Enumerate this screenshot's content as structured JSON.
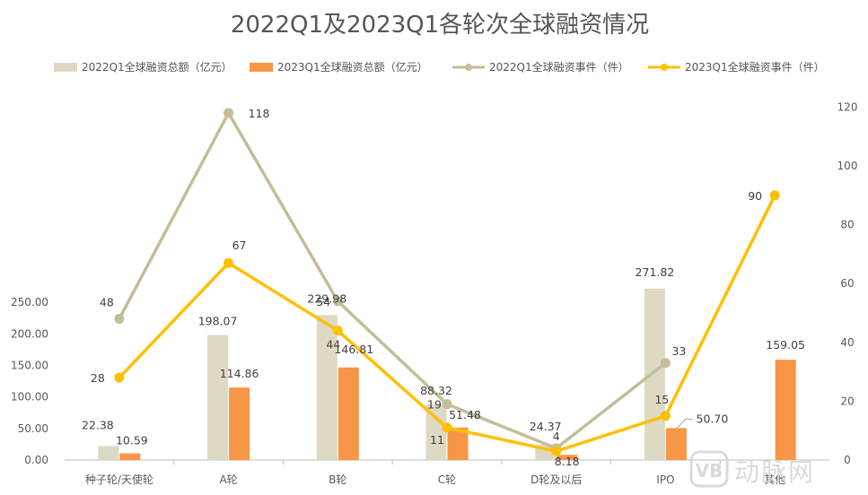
{
  "chart_data": {
    "type": "bar",
    "title": "2022Q1及2023Q1各轮次全球融资情况",
    "categories": [
      "种子轮/天使轮",
      "A轮",
      "B轮",
      "C轮",
      "D轮及以后",
      "IPO",
      "其他"
    ],
    "series": [
      {
        "name": "2022Q1全球融资总额（亿元）",
        "type": "bar",
        "axis": "left",
        "color": "#DDD9C3",
        "values": [
          22.38,
          198.07,
          229.98,
          88.32,
          24.37,
          271.82,
          null
        ],
        "labels": [
          "22.38",
          "198.07",
          "229.98",
          "88.32",
          "24.37",
          "271.82",
          ""
        ]
      },
      {
        "name": "2023Q1全球融资总额（亿元）",
        "type": "bar",
        "axis": "left",
        "color": "#F79646",
        "values": [
          10.59,
          114.86,
          146.81,
          51.48,
          8.18,
          50.7,
          159.05
        ],
        "labels": [
          "10.59",
          "114.86",
          "146.81",
          "51.48",
          "8.18",
          "50.70",
          "159.05"
        ]
      },
      {
        "name": "2022Q1全球融资事件（件）",
        "type": "line",
        "axis": "right",
        "color": "#C4BD97",
        "values": [
          48,
          118,
          54,
          19,
          4,
          33,
          null
        ],
        "labels": [
          "48",
          "118",
          "54",
          "19",
          "4",
          "33",
          ""
        ]
      },
      {
        "name": "2023Q1全球融资事件（件）",
        "type": "line",
        "axis": "right",
        "color": "#FFC000",
        "values": [
          28,
          67,
          44,
          11,
          3,
          15,
          90
        ],
        "labels": [
          "28",
          "67",
          "44",
          "11",
          "",
          "15",
          "90"
        ]
      }
    ],
    "y_left": {
      "min": 0,
      "max": 280,
      "ticks": [
        "0.00",
        "50.00",
        "100.00",
        "150.00",
        "200.00",
        "250.00"
      ]
    },
    "y_right": {
      "min": 0,
      "max": 127.7,
      "ticks": [
        "0",
        "20",
        "40",
        "60",
        "80",
        "100",
        "120"
      ]
    },
    "legend_position": "top",
    "grid": false
  },
  "watermark": {
    "text": "动脉网",
    "logo": "VB"
  }
}
